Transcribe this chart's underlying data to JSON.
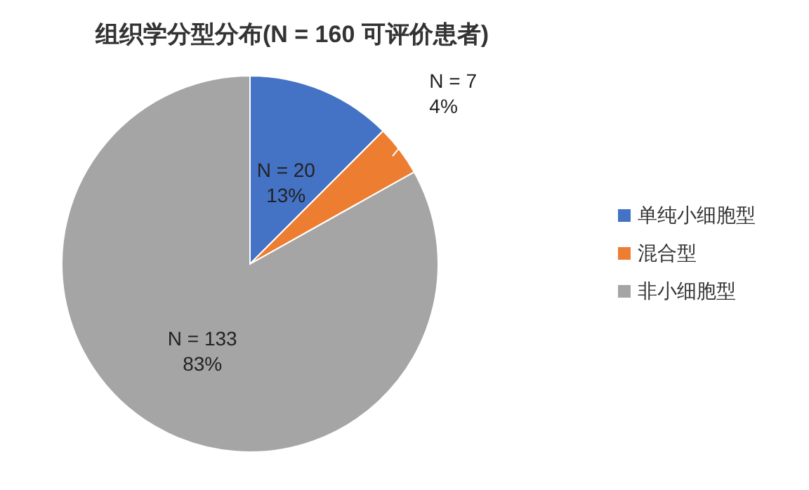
{
  "chart_data": {
    "type": "pie",
    "title": "组织学分型分布(N = 160 可评价患者)",
    "categories": [
      "单纯小细胞型",
      "混合型",
      "非小细胞型"
    ],
    "values": [
      20,
      7,
      133
    ],
    "colors": [
      "#4472c4",
      "#ed7d31",
      "#a5a5a5"
    ],
    "value_labels": [
      "N = 20\n13%",
      "N = 7\n4%",
      "N = 133\n83%"
    ],
    "legend": "right"
  }
}
